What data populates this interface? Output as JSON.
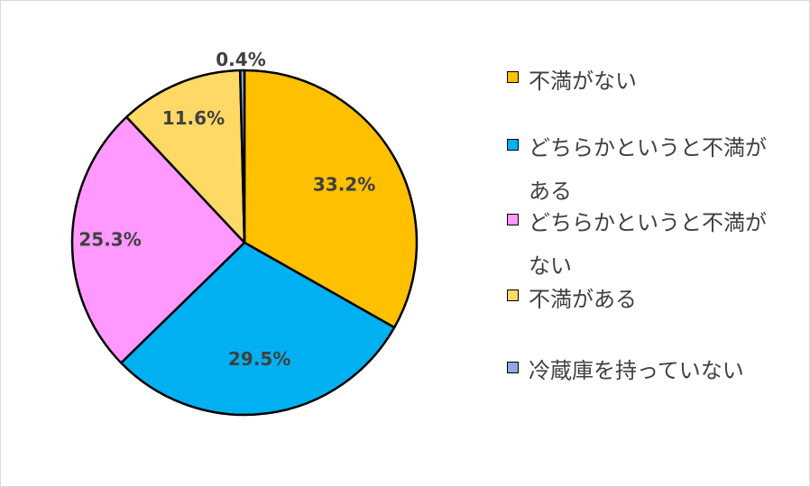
{
  "chart_data": {
    "type": "pie",
    "title": "",
    "slices": [
      {
        "label": "不満がない",
        "value": 33.2,
        "display": "33.2%",
        "color": "#FFC000"
      },
      {
        "label": "どちらかというと不満がある",
        "value": 29.5,
        "display": "29.5%",
        "color": "#00B0F0"
      },
      {
        "label": "どちらかというと不満がない",
        "value": 25.3,
        "display": "25.3%",
        "color": "#FF99FF"
      },
      {
        "label": "不満がある",
        "value": 11.6,
        "display": "11.6%",
        "color": "#FFD966"
      },
      {
        "label": "冷蔵庫を持っていない",
        "value": 0.4,
        "display": "0.4%",
        "color": "#8EA9DB"
      }
    ],
    "legend_position": "right",
    "start_angle": "12 o'clock",
    "direction": "clockwise"
  }
}
